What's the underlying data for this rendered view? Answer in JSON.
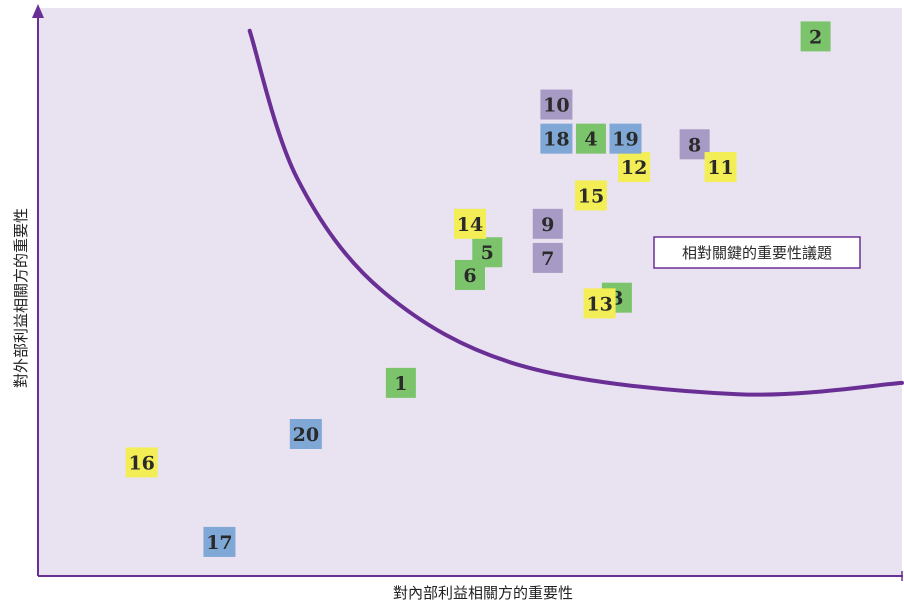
{
  "chart_data": {
    "type": "scatter",
    "xlabel": "對內部利益相關方的重要性",
    "ylabel": "對外部利益相關方的重要性",
    "annotation": "相對關鍵的重要性議題",
    "grid": false,
    "legend": "none",
    "colors": {
      "green": "#7cc46b",
      "blue": "#7fa8d6",
      "purple": "#a79ac4",
      "yellow": "#f3ee55",
      "curve": "#6a2f95",
      "plot_bg": "#e9e2f1"
    },
    "points": [
      {
        "label": "1",
        "x": 0.42,
        "y": 0.34,
        "color": "green"
      },
      {
        "label": "2",
        "x": 0.9,
        "y": 0.95,
        "color": "green"
      },
      {
        "label": "3",
        "x": 0.67,
        "y": 0.49,
        "color": "green"
      },
      {
        "label": "4",
        "x": 0.64,
        "y": 0.77,
        "color": "green"
      },
      {
        "label": "5",
        "x": 0.52,
        "y": 0.57,
        "color": "green"
      },
      {
        "label": "6",
        "x": 0.5,
        "y": 0.53,
        "color": "green"
      },
      {
        "label": "7",
        "x": 0.59,
        "y": 0.56,
        "color": "purple"
      },
      {
        "label": "8",
        "x": 0.76,
        "y": 0.76,
        "color": "purple"
      },
      {
        "label": "9",
        "x": 0.59,
        "y": 0.62,
        "color": "purple"
      },
      {
        "label": "10",
        "x": 0.6,
        "y": 0.83,
        "color": "purple"
      },
      {
        "label": "11",
        "x": 0.79,
        "y": 0.72,
        "color": "yellow"
      },
      {
        "label": "12",
        "x": 0.69,
        "y": 0.72,
        "color": "yellow"
      },
      {
        "label": "13",
        "x": 0.65,
        "y": 0.48,
        "color": "yellow"
      },
      {
        "label": "14",
        "x": 0.5,
        "y": 0.62,
        "color": "yellow"
      },
      {
        "label": "15",
        "x": 0.64,
        "y": 0.67,
        "color": "yellow"
      },
      {
        "label": "16",
        "x": 0.12,
        "y": 0.2,
        "color": "yellow"
      },
      {
        "label": "17",
        "x": 0.21,
        "y": 0.06,
        "color": "blue"
      },
      {
        "label": "18",
        "x": 0.6,
        "y": 0.77,
        "color": "blue"
      },
      {
        "label": "19",
        "x": 0.68,
        "y": 0.77,
        "color": "blue"
      },
      {
        "label": "20",
        "x": 0.31,
        "y": 0.25,
        "color": "blue"
      }
    ],
    "curve": [
      [
        0.245,
        0.96
      ],
      [
        0.3,
        0.7
      ],
      [
        0.4,
        0.5
      ],
      [
        0.56,
        0.37
      ],
      [
        0.81,
        0.32
      ],
      [
        1.0,
        0.34
      ]
    ],
    "xlim": [
      0,
      1
    ],
    "ylim": [
      0,
      1
    ]
  }
}
